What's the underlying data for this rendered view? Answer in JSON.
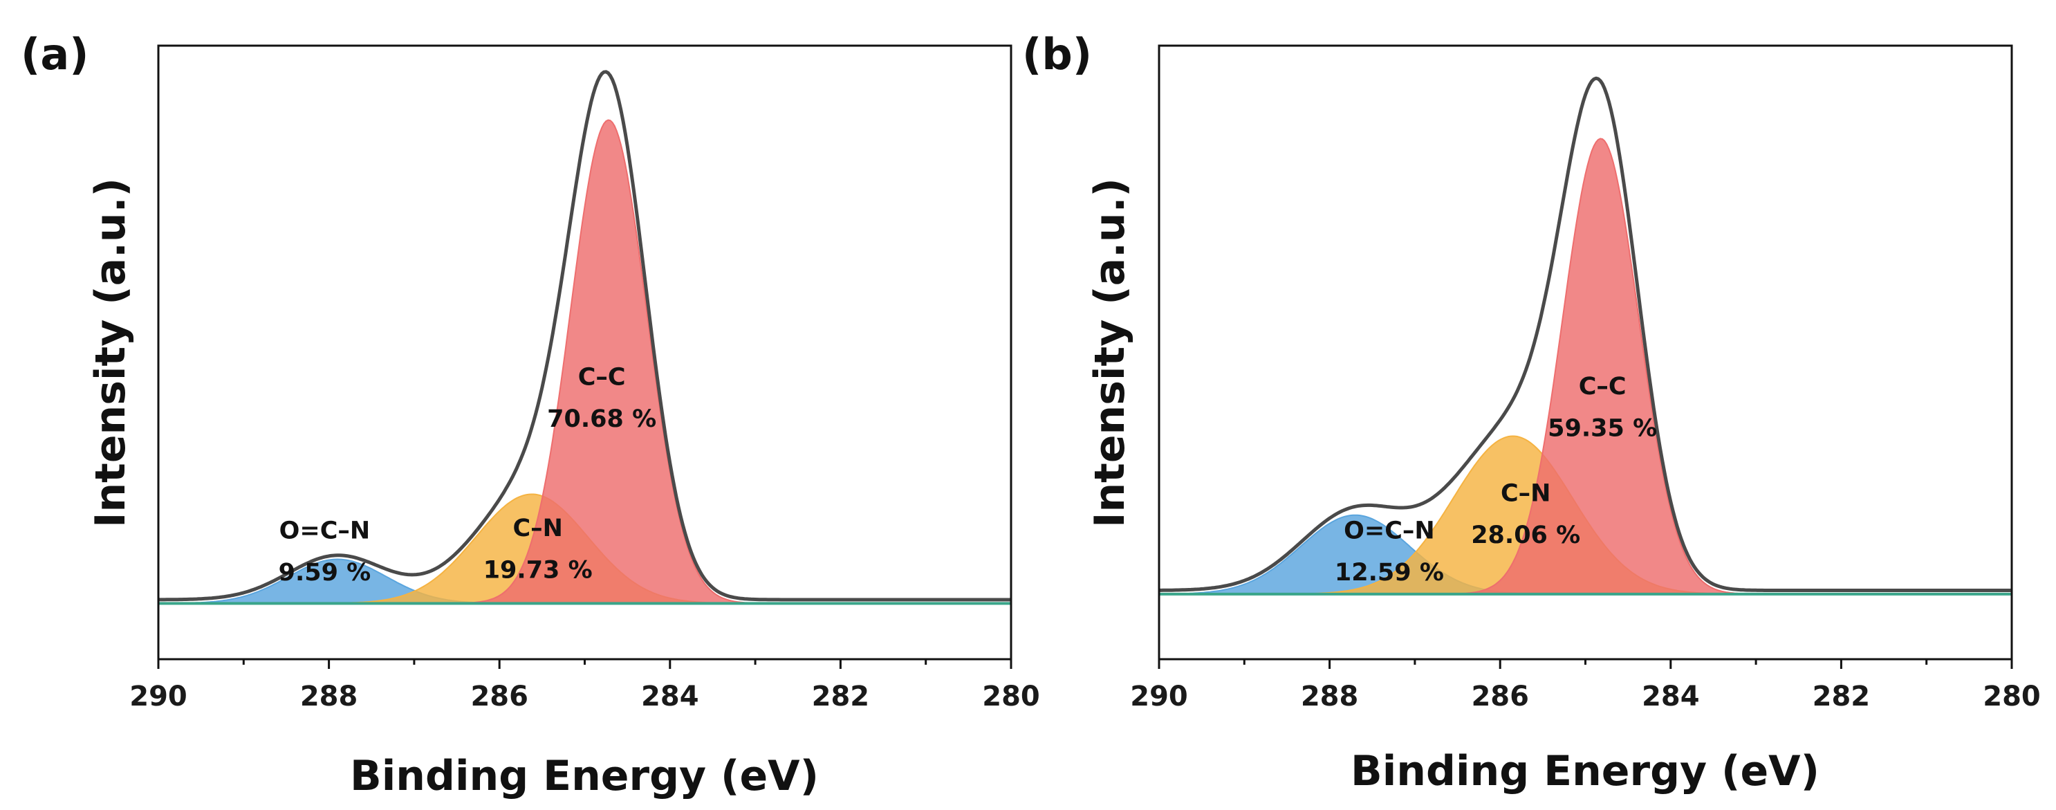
{
  "chart_data": [
    {
      "type": "area",
      "panel_label": "(a)",
      "xlabel": "Binding Energy (eV)",
      "ylabel": "Intensity (a.u.)",
      "xlim": [
        290,
        280
      ],
      "ylim": [
        -0.12,
        1.2
      ],
      "xticks": [
        "290",
        "288",
        "286",
        "284",
        "282",
        "280"
      ],
      "peaks": [
        {
          "name": "O=C–N",
          "percent": "9.59 %",
          "center": 287.9,
          "fwhm": 1.35,
          "height": 0.095,
          "color": "#5aa5de"
        },
        {
          "name": "C–N",
          "percent": "19.73 %",
          "center": 285.62,
          "fwhm": 1.55,
          "height": 0.235,
          "color": "#f5b342"
        },
        {
          "name": "C–C",
          "percent": "70.68 %",
          "center": 284.72,
          "fwhm": 1.05,
          "height": 1.04,
          "color": "#ee6e6e"
        }
      ],
      "labels": [
        {
          "peak": 0,
          "x": 288.05,
          "y": 0.14,
          "y2": 0.05
        },
        {
          "peak": 1,
          "x": 285.55,
          "y": 0.145,
          "y2": 0.055
        },
        {
          "peak": 2,
          "x": 284.8,
          "y": 0.47,
          "y2": 0.38
        }
      ]
    },
    {
      "type": "area",
      "panel_label": "(b)",
      "xlabel": "Binding Energy (eV)",
      "ylabel": "Intensity (a.u.)",
      "xlim": [
        290,
        280
      ],
      "ylim": [
        -0.14,
        1.18
      ],
      "xticks": [
        "290",
        "288",
        "286",
        "284",
        "282",
        "280"
      ],
      "peaks": [
        {
          "name": "O=C–N",
          "percent": "12.59 %",
          "center": 287.7,
          "fwhm": 1.5,
          "height": 0.17,
          "color": "#5aa5de"
        },
        {
          "name": "C–N",
          "percent": "28.06 %",
          "center": 285.85,
          "fwhm": 1.65,
          "height": 0.34,
          "color": "#f5b342"
        },
        {
          "name": "C–C",
          "percent": "59.35 %",
          "center": 284.82,
          "fwhm": 1.05,
          "height": 0.98,
          "color": "#ee6e6e"
        }
      ],
      "labels": [
        {
          "peak": 0,
          "x": 287.3,
          "y": 0.12,
          "y2": 0.03
        },
        {
          "peak": 1,
          "x": 285.7,
          "y": 0.2,
          "y2": 0.11
        },
        {
          "peak": 2,
          "x": 284.8,
          "y": 0.43,
          "y2": 0.34
        }
      ]
    }
  ]
}
